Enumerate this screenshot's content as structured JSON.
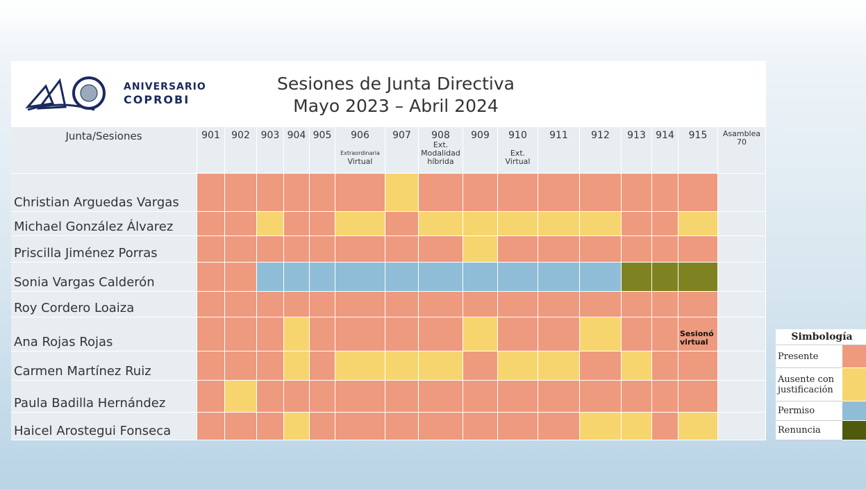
{
  "logo": {
    "line1": "ANIVERSARIO",
    "line2": "COPROBI"
  },
  "header": {
    "title": "Sesiones de Junta Directiva",
    "subtitle": "Mayo 2023 – Abril 2024"
  },
  "table": {
    "corner": "Junta/Sesiones",
    "columns": [
      {
        "label": "901"
      },
      {
        "label": "902"
      },
      {
        "label": "903"
      },
      {
        "label": "904"
      },
      {
        "label": "905"
      },
      {
        "label": "906",
        "note": "Extraordinaria",
        "note2": "Virtual"
      },
      {
        "label": "907"
      },
      {
        "label": "908",
        "note": "Ext.",
        "note2": "Modalidad",
        "note3": "híbrida"
      },
      {
        "label": "909"
      },
      {
        "label": "910",
        "note": "Ext.",
        "note2": "Virtual"
      },
      {
        "label": "911"
      },
      {
        "label": "912"
      },
      {
        "label": "913"
      },
      {
        "label": "914"
      },
      {
        "label": "915"
      },
      {
        "label": "Asamblea 70"
      }
    ],
    "rows": [
      {
        "name": "Christian Arguedas Vargas",
        "cells": [
          "#ee9a7e",
          "#ee9a7e",
          "#ee9a7e",
          "#ee9a7e",
          "#ee9a7e",
          "#ee9a7e",
          "#f7d56e",
          "#ee9a7e",
          "#ee9a7e",
          "#ee9a7e",
          "#ee9a7e",
          "#ee9a7e",
          "#ee9a7e",
          "#ee9a7e",
          "#ee9a7e",
          null
        ]
      },
      {
        "name": "Michael González Álvarez",
        "cells": [
          "#ee9a7e",
          "#ee9a7e",
          "#f7d56e",
          "#ee9a7e",
          "#ee9a7e",
          "#f7d56e",
          "#ee9a7e",
          "#f7d56e",
          "#f7d56e",
          "#f7d56e",
          "#f7d56e",
          "#f7d56e",
          "#ee9a7e",
          "#ee9a7e",
          "#f7d56e",
          null
        ]
      },
      {
        "name": "Priscilla Jiménez Porras",
        "cells": [
          "#ee9a7e",
          "#ee9a7e",
          "#ee9a7e",
          "#ee9a7e",
          "#ee9a7e",
          "#ee9a7e",
          "#ee9a7e",
          "#ee9a7e",
          "#f7d56e",
          "#ee9a7e",
          "#ee9a7e",
          "#ee9a7e",
          "#ee9a7e",
          "#ee9a7e",
          "#ee9a7e",
          null
        ]
      },
      {
        "name": "Sonia Vargas Calderón",
        "cells": [
          "#ee9a7e",
          "#ee9a7e",
          "#8fbcd6",
          "#8fbcd6",
          "#8fbcd6",
          "#8fbcd6",
          "#8fbcd6",
          "#8fbcd6",
          "#8fbcd6",
          "#8fbcd6",
          "#8fbcd6",
          "#8fbcd6",
          "#7f8220",
          "#7f8220",
          "#7f8220",
          null
        ]
      },
      {
        "name": "Roy  Cordero Loaiza",
        "cells": [
          "#ee9a7e",
          "#ee9a7e",
          "#ee9a7e",
          "#ee9a7e",
          "#ee9a7e",
          "#ee9a7e",
          "#ee9a7e",
          "#ee9a7e",
          "#ee9a7e",
          "#ee9a7e",
          "#ee9a7e",
          "#ee9a7e",
          "#ee9a7e",
          "#ee9a7e",
          "#ee9a7e",
          null
        ]
      },
      {
        "name": "Ana Rojas Rojas",
        "cells": [
          "#ee9a7e",
          "#ee9a7e",
          "#ee9a7e",
          "#f7d56e",
          "#ee9a7e",
          "#ee9a7e",
          "#ee9a7e",
          "#ee9a7e",
          "#f7d56e",
          "#ee9a7e",
          "#ee9a7e",
          "#f7d56e",
          "#ee9a7e",
          "#ee9a7e",
          {
            "color": "#ee9a7e",
            "text": "Sesionó virtual"
          },
          null
        ]
      },
      {
        "name": "Carmen Martínez Ruiz",
        "cells": [
          "#ee9a7e",
          "#ee9a7e",
          "#ee9a7e",
          "#f7d56e",
          "#ee9a7e",
          "#f7d56e",
          "#f7d56e",
          "#f7d56e",
          "#ee9a7e",
          "#f7d56e",
          "#f7d56e",
          "#ee9a7e",
          "#f7d56e",
          "#ee9a7e",
          "#ee9a7e",
          null
        ]
      },
      {
        "name": "Paula Badilla Hernández",
        "cells": [
          "#ee9a7e",
          "#f7d56e",
          "#ee9a7e",
          "#ee9a7e",
          "#ee9a7e",
          "#ee9a7e",
          "#ee9a7e",
          "#ee9a7e",
          "#ee9a7e",
          "#ee9a7e",
          "#ee9a7e",
          "#ee9a7e",
          "#ee9a7e",
          "#ee9a7e",
          "#ee9a7e",
          null
        ]
      },
      {
        "name": "Haicel Arostegui Fonseca",
        "cells": [
          "#ee9a7e",
          "#ee9a7e",
          "#ee9a7e",
          "#f7d56e",
          "#ee9a7e",
          "#ee9a7e",
          "#ee9a7e",
          "#ee9a7e",
          "#ee9a7e",
          "#ee9a7e",
          "#ee9a7e",
          "#f7d56e",
          "#f7d56e",
          "#ee9a7e",
          "#f7d56e",
          null
        ]
      }
    ]
  },
  "legend": {
    "title": "Simbología",
    "items": [
      {
        "label": "Presente",
        "color": "#ee9a7e"
      },
      {
        "label": "Ausente con justificación",
        "color": "#f7d56e"
      },
      {
        "label": "Permiso",
        "color": "#8fbcd6"
      },
      {
        "label": "Renuncia",
        "color": "#4f5a0e"
      }
    ]
  }
}
